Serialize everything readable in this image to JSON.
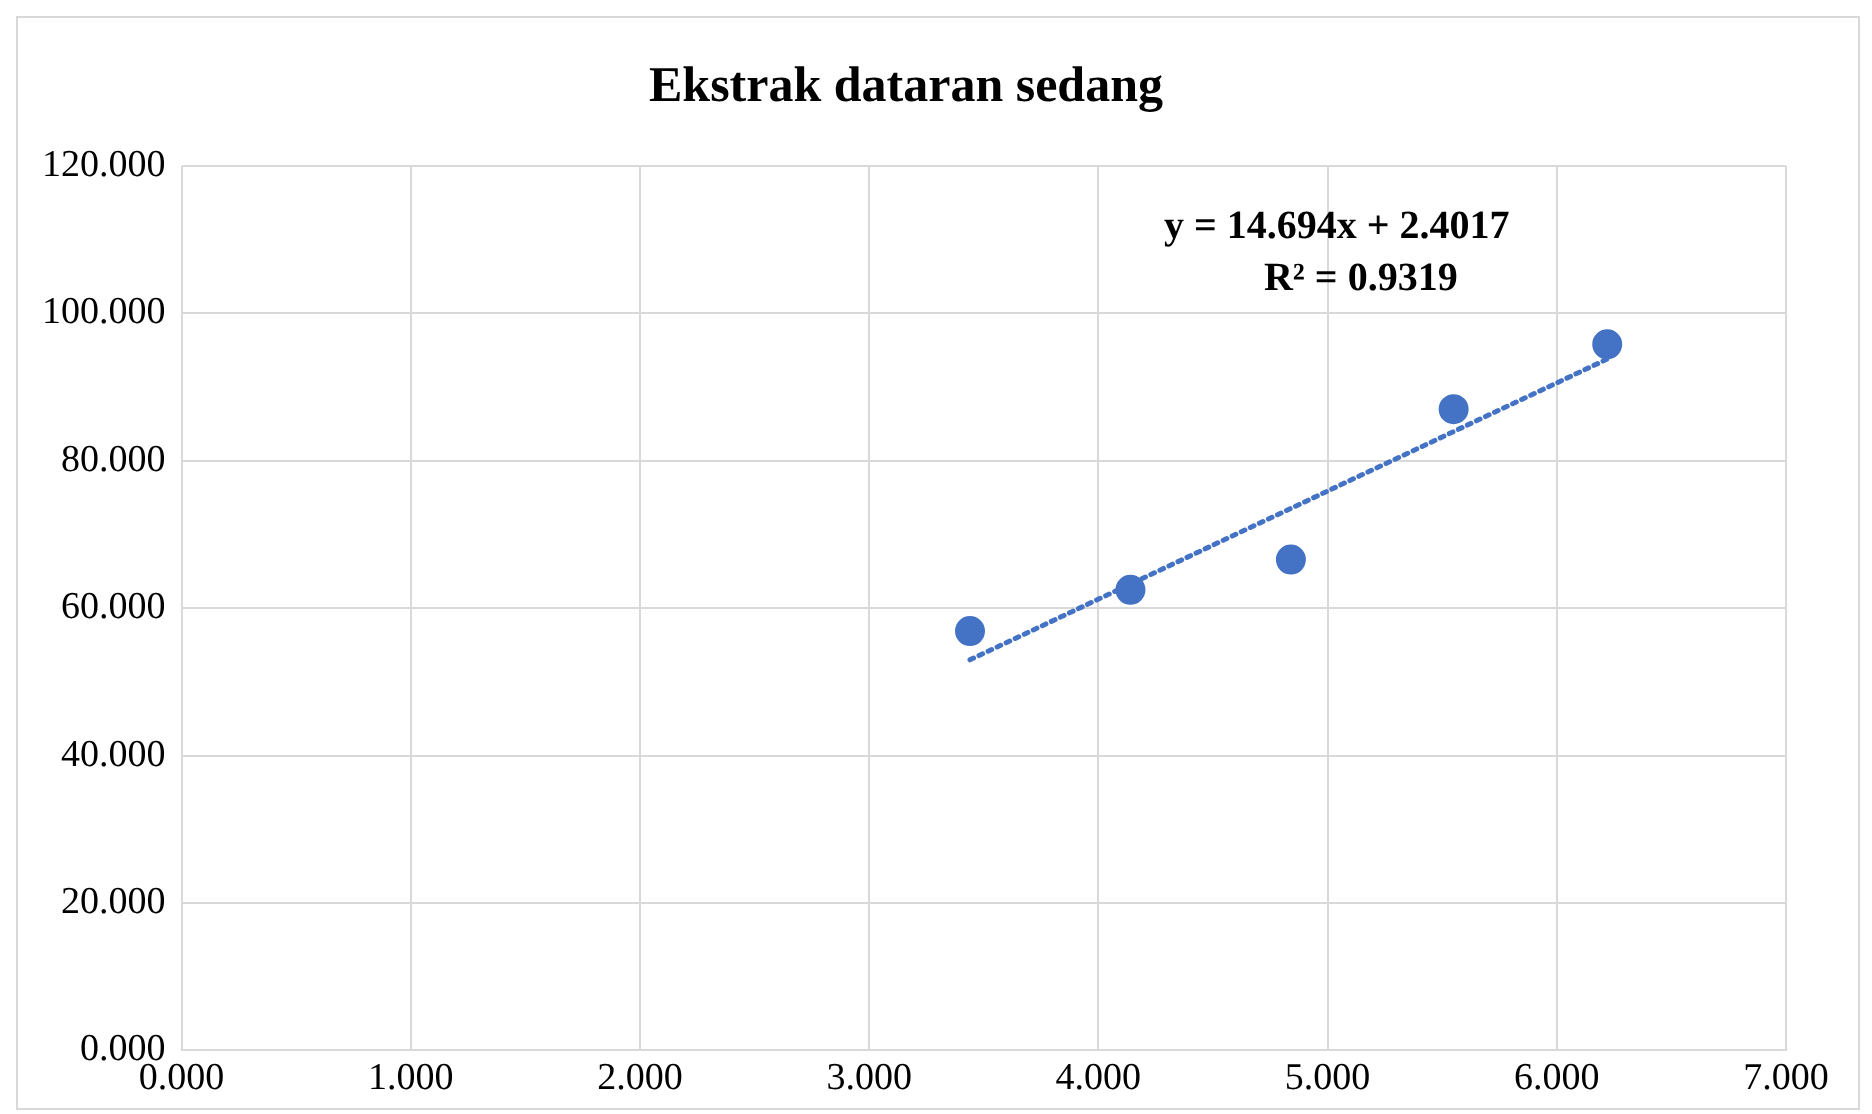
{
  "chart_data": {
    "type": "scatter",
    "title": "Ekstrak dataran sedang",
    "x": [
      3.44,
      4.14,
      4.84,
      5.55,
      6.22
    ],
    "series": [
      {
        "type": "scatter",
        "color": "#4472c4",
        "marker": "circle",
        "values": [
          56.9,
          62.5,
          66.6,
          87.0,
          95.8
        ]
      },
      {
        "type": "line",
        "color": "#4472c4",
        "marker": "none",
        "line_style": "dotted",
        "x": [
          3.44,
          6.22
        ],
        "values": [
          53.0,
          93.8
        ]
      }
    ],
    "xlim": [
      0,
      7
    ],
    "xticks": [
      {
        "value": 0,
        "label": "0.000"
      },
      {
        "value": 1,
        "label": "1.000"
      },
      {
        "value": 2,
        "label": "2.000"
      },
      {
        "value": 3,
        "label": "3.000"
      },
      {
        "value": 4,
        "label": "4.000"
      },
      {
        "value": 5,
        "label": "5.000"
      },
      {
        "value": 6,
        "label": "6.000"
      },
      {
        "value": 7,
        "label": "7.000"
      }
    ],
    "ylim": [
      0,
      120
    ],
    "yticks": [
      {
        "value": 0,
        "label": "0.000"
      },
      {
        "value": 20,
        "label": "20.000"
      },
      {
        "value": 40,
        "label": "40.000"
      },
      {
        "value": 60,
        "label": "60.000"
      },
      {
        "value": 80,
        "label": "80.000"
      },
      {
        "value": 100,
        "label": "100.000"
      },
      {
        "value": 120,
        "label": "120.000"
      }
    ],
    "annotations": [
      "y = 14.694x + 2.4017",
      "R² = 0.9319"
    ],
    "grid": true,
    "legend": false
  }
}
